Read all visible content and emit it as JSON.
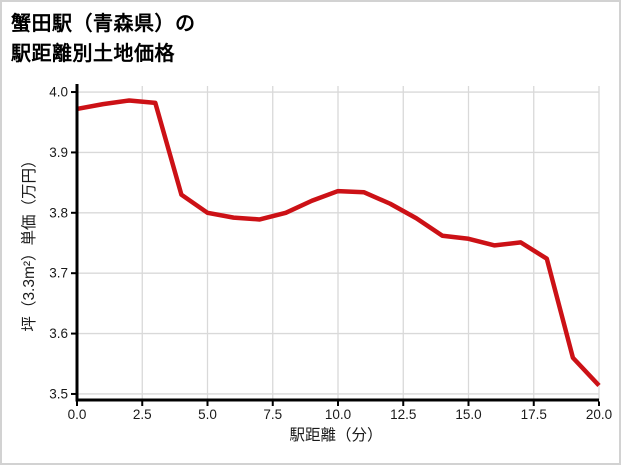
{
  "title": {
    "line1": "蟹田駅（青森県）の",
    "line2": "駅距離別土地価格"
  },
  "chart_data": {
    "type": "line",
    "title": "蟹田駅（青森県）の駅距離別土地価格",
    "xlabel": "駅距離（分）",
    "ylabel": "坪（3.3m²）単価（万円）",
    "x": [
      0,
      1,
      2,
      3,
      4,
      5,
      6,
      7,
      8,
      9,
      10,
      11,
      12,
      13,
      14,
      15,
      16,
      17,
      18,
      19,
      20
    ],
    "values": [
      3.972,
      3.98,
      3.986,
      3.982,
      3.83,
      3.8,
      3.792,
      3.789,
      3.8,
      3.82,
      3.836,
      3.834,
      3.815,
      3.791,
      3.762,
      3.757,
      3.746,
      3.751,
      3.724,
      3.56,
      3.514
    ],
    "series_name": "駅距離別土地価格",
    "xlim": [
      0,
      20
    ],
    "ylim": [
      3.49,
      4.01
    ],
    "x_tick_labels": [
      "0.0",
      "2.5",
      "5.0",
      "7.5",
      "10.0",
      "12.5",
      "15.0",
      "17.5",
      "20.0"
    ],
    "y_tick_labels": [
      "3.5",
      "3.6",
      "3.7",
      "3.8",
      "3.9",
      "4.0"
    ],
    "grid": true,
    "legend_position": "none",
    "line_color": "#cc1116",
    "grid_color": "#d9d9d9",
    "axis_color": "#000000",
    "tick_label_color": "#1a1a1a",
    "background_color": "#ffffff",
    "frame_border_color": "#d2d2d2"
  }
}
